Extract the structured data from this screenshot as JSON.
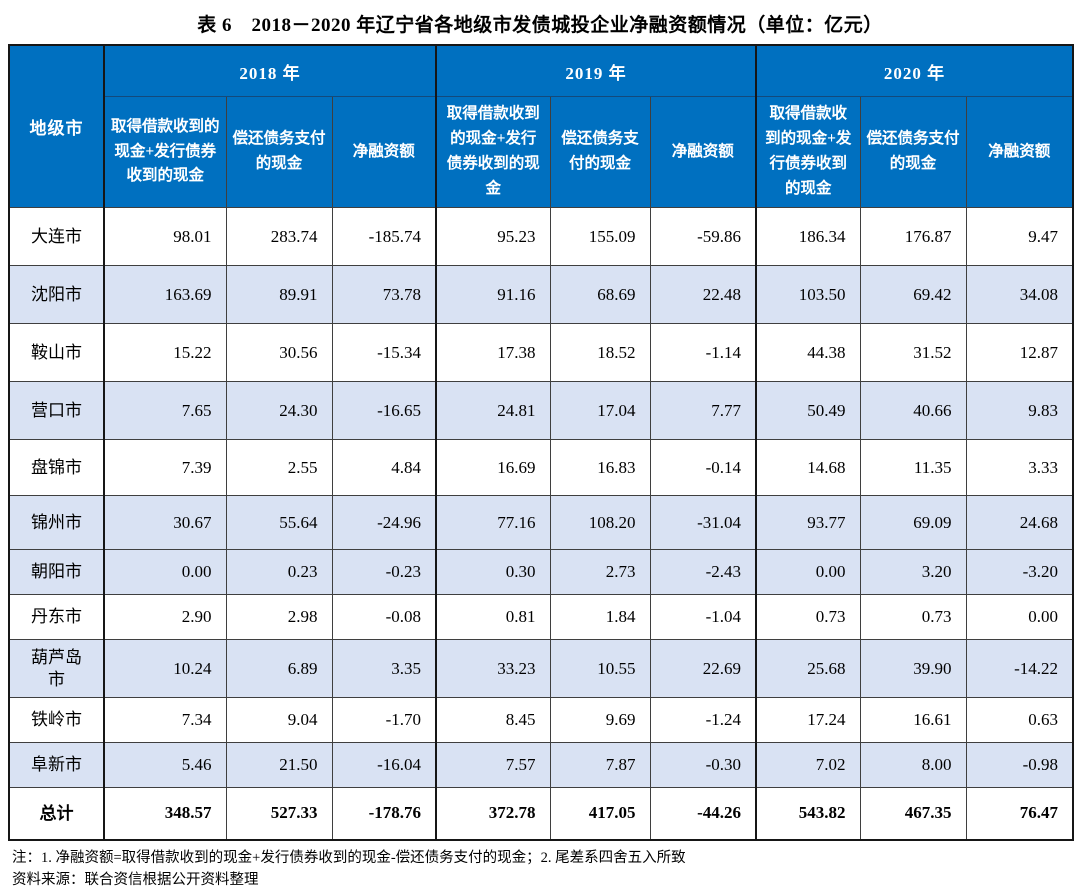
{
  "title": "表 6　2018－2020 年辽宁省各地级市发债城投企业净融资额情况（单位：亿元）",
  "table": {
    "corner_header": "地级市",
    "year_headers": [
      "2018 年",
      "2019 年",
      "2020 年"
    ],
    "sub_headers": [
      "取得借款收到的现金+发行债券收到的现金",
      "偿还债务支付的现金",
      "净融资额"
    ],
    "rows": [
      {
        "city": "大连市",
        "shaded": false,
        "bold": false,
        "values": [
          "98.01",
          "283.74",
          "-185.74",
          "95.23",
          "155.09",
          "-59.86",
          "186.34",
          "176.87",
          "9.47"
        ]
      },
      {
        "city": "沈阳市",
        "shaded": true,
        "bold": false,
        "values": [
          "163.69",
          "89.91",
          "73.78",
          "91.16",
          "68.69",
          "22.48",
          "103.50",
          "69.42",
          "34.08"
        ]
      },
      {
        "city": "鞍山市",
        "shaded": false,
        "bold": false,
        "values": [
          "15.22",
          "30.56",
          "-15.34",
          "17.38",
          "18.52",
          "-1.14",
          "44.38",
          "31.52",
          "12.87"
        ]
      },
      {
        "city": "营口市",
        "shaded": true,
        "bold": false,
        "values": [
          "7.65",
          "24.30",
          "-16.65",
          "24.81",
          "17.04",
          "7.77",
          "50.49",
          "40.66",
          "9.83"
        ]
      },
      {
        "city": "盘锦市",
        "shaded": false,
        "bold": false,
        "values": [
          "7.39",
          "2.55",
          "4.84",
          "16.69",
          "16.83",
          "-0.14",
          "14.68",
          "11.35",
          "3.33"
        ]
      },
      {
        "city": "锦州市",
        "shaded": true,
        "bold": false,
        "values": [
          "30.67",
          "55.64",
          "-24.96",
          "77.16",
          "108.20",
          "-31.04",
          "93.77",
          "69.09",
          "24.68"
        ]
      },
      {
        "city": "朝阳市",
        "shaded": true,
        "bold": false,
        "values": [
          "0.00",
          "0.23",
          "-0.23",
          "0.30",
          "2.73",
          "-2.43",
          "0.00",
          "3.20",
          "-3.20"
        ]
      },
      {
        "city": "丹东市",
        "shaded": false,
        "bold": false,
        "values": [
          "2.90",
          "2.98",
          "-0.08",
          "0.81",
          "1.84",
          "-1.04",
          "0.73",
          "0.73",
          "0.00"
        ]
      },
      {
        "city": "葫芦岛市",
        "shaded": true,
        "bold": false,
        "values": [
          "10.24",
          "6.89",
          "3.35",
          "33.23",
          "10.55",
          "22.69",
          "25.68",
          "39.90",
          "-14.22"
        ]
      },
      {
        "city": "铁岭市",
        "shaded": false,
        "bold": false,
        "values": [
          "7.34",
          "9.04",
          "-1.70",
          "8.45",
          "9.69",
          "-1.24",
          "17.24",
          "16.61",
          "0.63"
        ]
      },
      {
        "city": "阜新市",
        "shaded": true,
        "bold": false,
        "values": [
          "5.46",
          "21.50",
          "-16.04",
          "7.57",
          "7.87",
          "-0.30",
          "7.02",
          "8.00",
          "-0.98"
        ]
      },
      {
        "city": "总计",
        "shaded": false,
        "bold": true,
        "values": [
          "348.57",
          "527.33",
          "-178.76",
          "372.78",
          "417.05",
          "-44.26",
          "543.82",
          "467.35",
          "76.47"
        ]
      }
    ]
  },
  "notes": {
    "note_line": "注：1. 净融资额=取得借款收到的现金+发行债券收到的现金-偿还债务支付的现金；2. 尾差系四舍五入所致",
    "source_line": "资料来源：联合资信根据公开资料整理"
  },
  "colors": {
    "header_bg": "#0070C0",
    "header_text": "#FFFFFF",
    "shaded_row_bg": "#D9E2F3",
    "border_dark": "#161616"
  }
}
